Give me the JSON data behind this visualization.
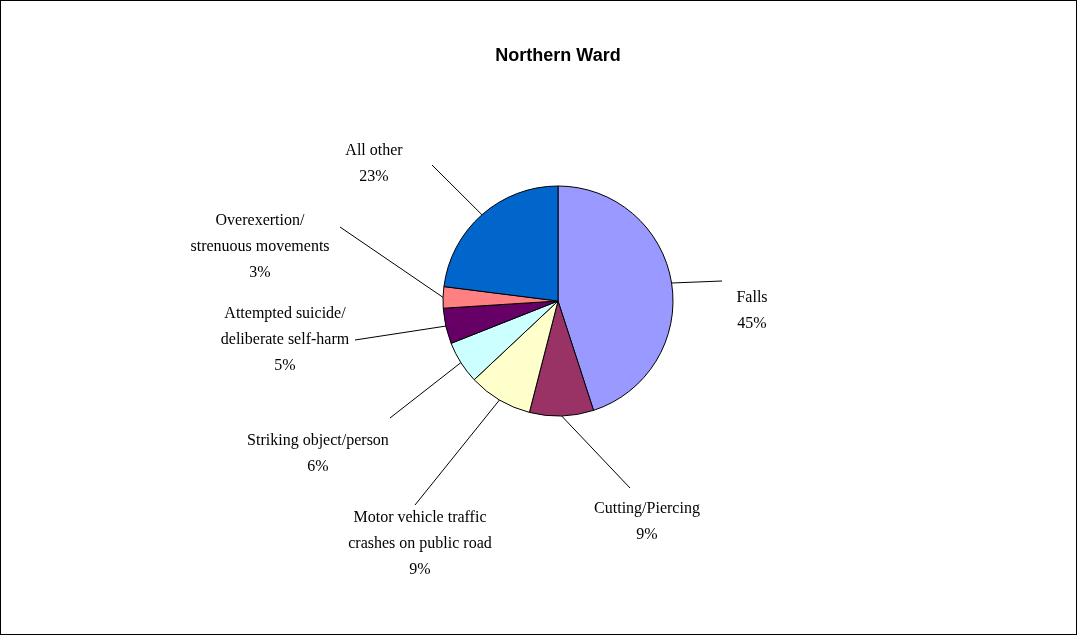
{
  "chart_data": {
    "type": "pie",
    "title": "Northern Ward",
    "categories": [
      "Falls",
      "Cutting/Piercing",
      "Motor vehicle traffic\ncrashes on public road",
      "Striking object/person",
      "Attempted suicide/\ndeliberate self-harm",
      "Overexertion/\nstrenuous movements",
      "All other"
    ],
    "values": [
      45,
      9,
      9,
      6,
      5,
      3,
      23
    ],
    "colors": [
      "#9999ff",
      "#993366",
      "#ffffcc",
      "#ccffff",
      "#660066",
      "#ff8080",
      "#0066cc"
    ],
    "value_labels": [
      "45%",
      "9%",
      "9%",
      "6%",
      "5%",
      "3%",
      "23%"
    ]
  }
}
